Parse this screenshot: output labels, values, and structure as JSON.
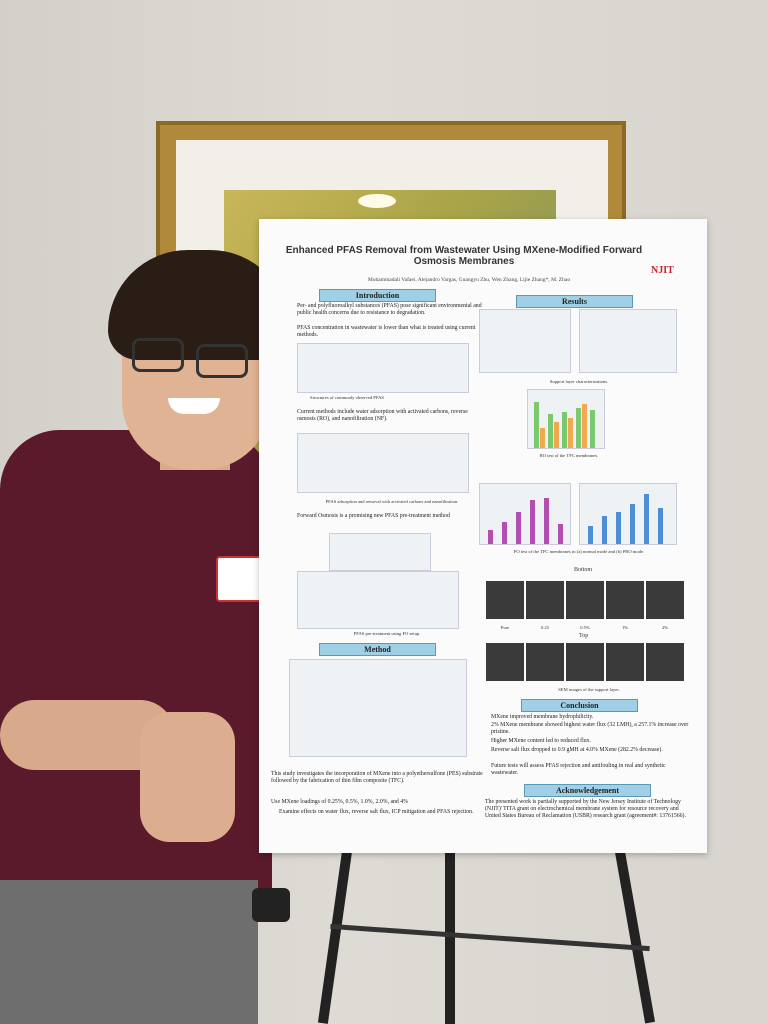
{
  "poster": {
    "title": "Enhanced PFAS Removal from Wastewater Using MXene-Modified Forward Osmosis Membranes",
    "authors": "Mohammadali Vafaei, Alejandro Vargas, Guangyu Zhu, Wen Zhang, Lijie Zhang*, M. Zhao",
    "logo": "NJIT",
    "intro": {
      "heading": "Introduction",
      "p1": "Per- and polyfluoroalkyl substances (PFAS) pose significant environmental and public health concerns due to resistance to degradation.",
      "p2": "PFAS concentration in wastewater is lower than what is treated using current methods.",
      "fig1_caption": "Structures of commonly observed PFAS",
      "bullet1": "Current methods include water adsorption with activated carbons, reverse osmosis (RO), and nanofiltration (NF).",
      "fig2_caption": "PFAS adsorption and removal with activated carbons and nanofiltration.",
      "bullet2": "Forward Osmosis is a promising new PFAS pre-treatment method",
      "fig3_caption": "PFAS pre-treatment using FO setup."
    },
    "method": {
      "heading": "Method",
      "bullet1": "This study investigates the incorporation of MXene into a polyethersulfone (PES) substrate followed by the fabrication of thin film composite (TFC).",
      "bullet2": "Use MXene loadings of 0.25%, 0.5%, 1.0%, 2.0%, and 4%",
      "bullet3": "Examine effects on water flux, reverse salt flux, ICP mitigation and PFAS rejection."
    },
    "results": {
      "heading": "Results",
      "cap1": "Support layer characterizations.",
      "cap2": "RO test of the TFC membranes.",
      "cap3": "FO test of the TFC membranes in (a) normal mode and (b) PRO mode.",
      "sem_bottom": "Bottom",
      "sem_top": "Top",
      "sem_labels": [
        "Pure",
        "0.25",
        "0.5%",
        "1%",
        "2%"
      ],
      "sem_caption": "SEM images of the support layer."
    },
    "conclusion": {
      "heading": "Conclusion",
      "items": [
        "MXene improved membrane hydrophilicity.",
        "2% MXene membrane showed highest water flux (32 LMH), a 257.1% increase over pristine.",
        "Higher MXene content led to reduced flux.",
        "Reverse salt flux dropped to 0.9 gMH at 4.0% MXene (282.2% decrease).",
        "Future tests will assess PFAS rejection and antifouling in real and synthetic wastewater."
      ]
    },
    "ack": {
      "heading": "Acknowledgement",
      "text": "The presented work is partially supported by the New Jersey Institute of Technology (NJIT)' TITA grant on electrochemical membrane system for resource recovery and United States Bureau of Reclamation (USBR) research grant (agreement#: 13761566)."
    }
  },
  "colors": {
    "shirt": "#5a1a2c",
    "poster_header": "#9fd0e6",
    "frame": "#b08a3a"
  }
}
